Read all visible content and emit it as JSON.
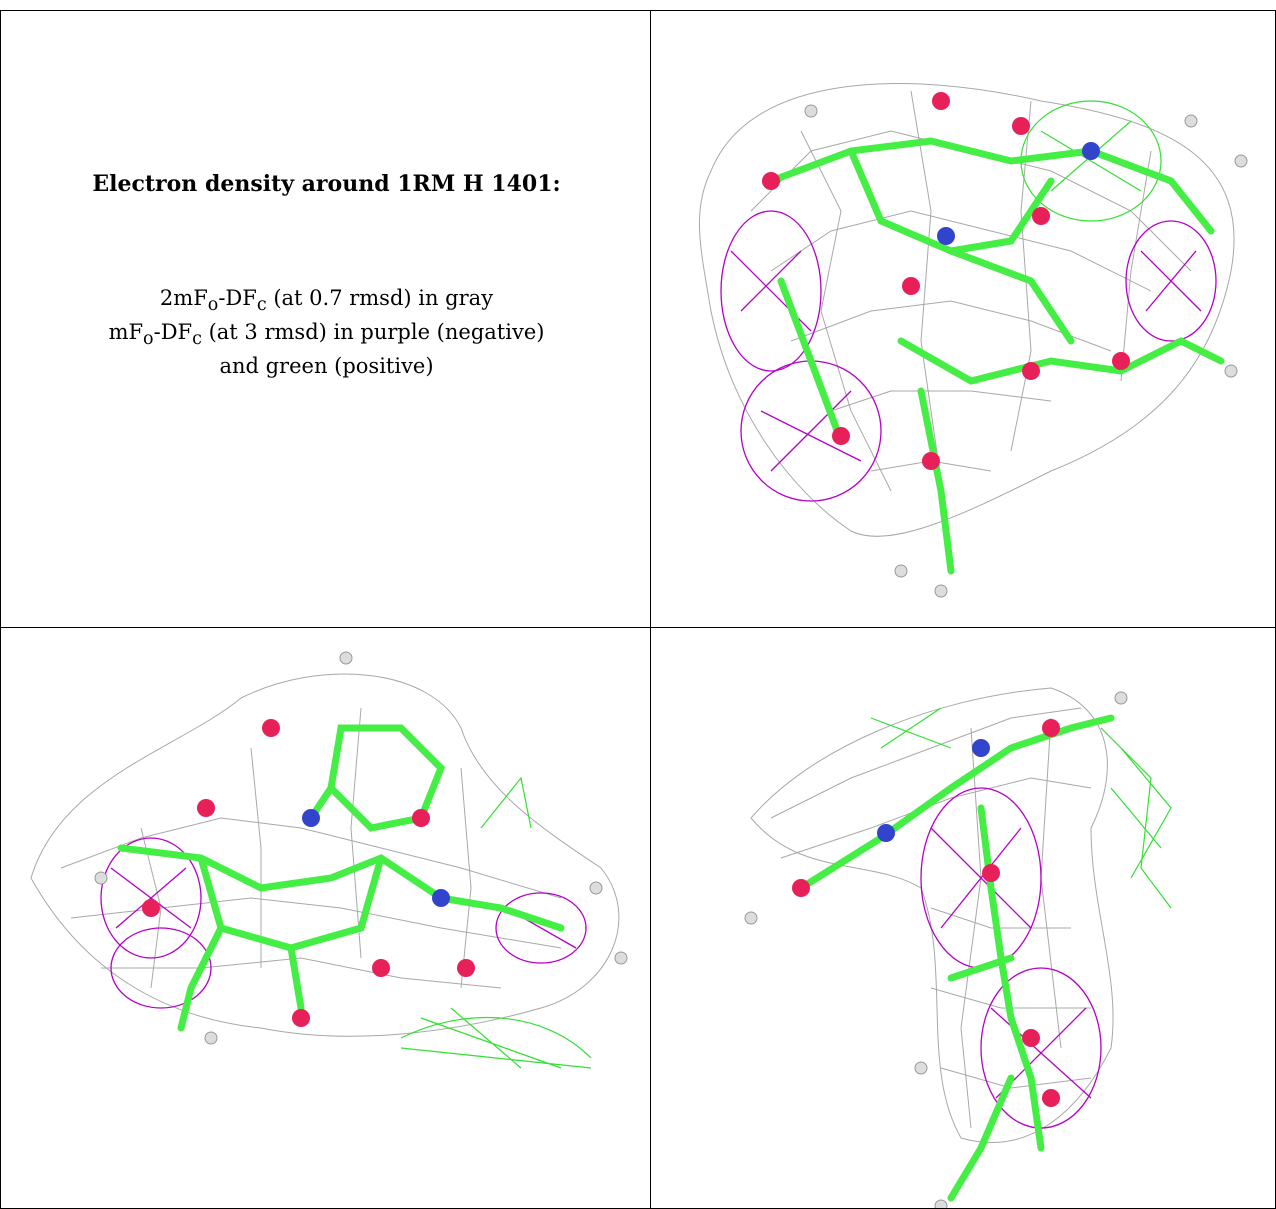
{
  "caption": {
    "title": "Electron density around 1RM H 1401:",
    "line1": "2mFₒ-DFᶜ (at 0.7 rmsd) in gray",
    "line2": "mFₒ-DFᶜ (at 3 rmsd) in purple (negative)",
    "line3": "and green (positive)"
  },
  "panels": [
    {
      "id": "view-1",
      "content": "molecule with gray, purple and green density mesh"
    },
    {
      "id": "view-2",
      "content": "molecule with gray, purple and green density mesh"
    },
    {
      "id": "view-3",
      "content": "molecule with gray, purple and green density mesh"
    }
  ],
  "colors": {
    "map_2fofc": "#9a9a9a",
    "map_negative": "#b400c8",
    "map_positive": "#33e033",
    "carbon": "#44ee44",
    "oxygen": "#e8205a",
    "nitrogen": "#3344cc",
    "hydrogen": "#dddddd"
  }
}
